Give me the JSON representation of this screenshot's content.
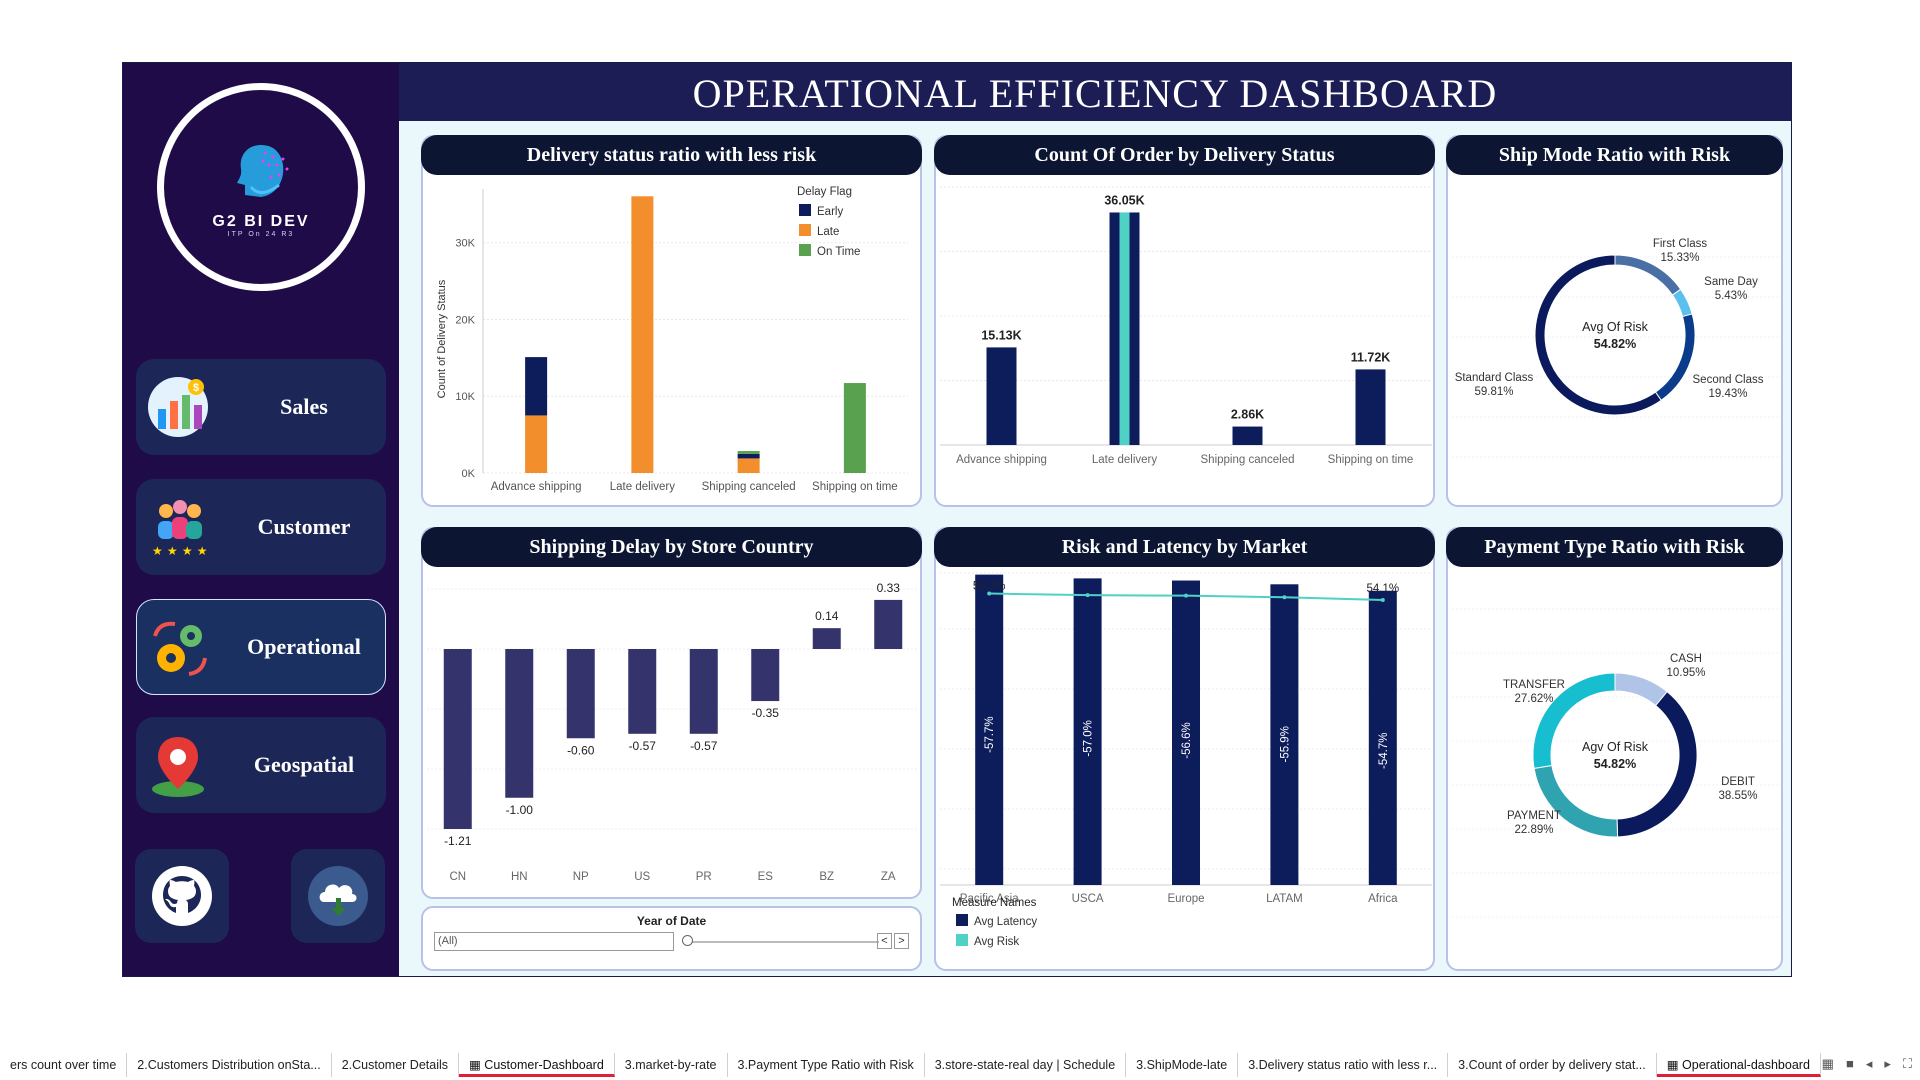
{
  "header": {
    "title": "OPERATIONAL EFFICIENCY DASHBOARD"
  },
  "logo": {
    "title": "G2 BI DEV",
    "subtitle": "ITP On 24 R3"
  },
  "nav": {
    "sales": "Sales",
    "customer": "Customer",
    "operational": "Operational",
    "geospatial": "Geospatial"
  },
  "panels": {
    "delivery_ratio": "Delivery status ratio with less risk",
    "count_order": "Count Of Order by Delivery Status",
    "ship_mode": "Ship Mode Ratio with Risk",
    "shipping_delay": "Shipping Delay by Store Country",
    "risk_latency": "Risk and Latency by Market",
    "payment_type": "Payment Type Ratio with Risk"
  },
  "filter": {
    "label": "Year of Date",
    "value": "(All)",
    "prev": "<",
    "next": ">"
  },
  "colors": {
    "early": "#0d1d5c",
    "late": "#f28e2b",
    "on_time": "#59a14f",
    "navy": "#0d1d5c",
    "teal": "#4fd1c5",
    "delay_bar": "#35336b"
  },
  "chart_data": [
    {
      "type": "bar",
      "title": "Delivery status ratio with less risk",
      "ylabel": "Count of Delivery Status",
      "categories": [
        "Advance shipping",
        "Late delivery",
        "Shipping canceled",
        "Shipping on time"
      ],
      "series": [
        {
          "name": "Early",
          "values": [
            7600,
            0,
            600,
            0
          ]
        },
        {
          "name": "Late",
          "values": [
            7500,
            36050,
            1900,
            0
          ]
        },
        {
          "name": "On Time",
          "values": [
            0,
            0,
            360,
            11720
          ]
        }
      ],
      "yticks": [
        "0K",
        "10K",
        "20K",
        "30K"
      ],
      "ylim": [
        0,
        37000
      ],
      "legend_title": "Delay Flag",
      "legend": "top-right"
    },
    {
      "type": "bar",
      "title": "Count Of Order by Delivery Status",
      "categories": [
        "Advance shipping",
        "Late delivery",
        "Shipping canceled",
        "Shipping on time"
      ],
      "values": [
        15130,
        36050,
        2860,
        11720
      ],
      "labels": [
        "15.13K",
        "36.05K",
        "2.86K",
        "11.72K"
      ],
      "ylim": [
        0,
        40000
      ]
    },
    {
      "type": "pie",
      "title": "Ship Mode Ratio with Risk",
      "center_label": "Avg Of Risk",
      "center_value": "54.82%",
      "slices": [
        {
          "name": "First Class",
          "value": 15.33,
          "label": "15.33%"
        },
        {
          "name": "Same Day",
          "value": 5.43,
          "label": "5.43%"
        },
        {
          "name": "Second Class",
          "value": 19.43,
          "label": "19.43%"
        },
        {
          "name": "Standard Class",
          "value": 59.81,
          "label": "59.81%"
        }
      ]
    },
    {
      "type": "bar",
      "title": "Shipping Delay by Store Country",
      "categories": [
        "CN",
        "HN",
        "NP",
        "US",
        "PR",
        "ES",
        "BZ",
        "ZA"
      ],
      "values": [
        -1.21,
        -1.0,
        -0.6,
        -0.57,
        -0.57,
        -0.35,
        0.14,
        0.33
      ],
      "labels": [
        "-1.21",
        "-1.00",
        "-0.60",
        "-0.57",
        "-0.57",
        "-0.35",
        "0.14",
        "0.33"
      ]
    },
    {
      "type": "bar",
      "title": "Risk and Latency by Market",
      "categories": [
        "Pacific Asia",
        "USCA",
        "Europe",
        "LATAM",
        "Africa"
      ],
      "series": [
        {
          "name": "Avg Latency",
          "values": [
            -57.7,
            -57.0,
            -56.6,
            -55.9,
            -54.7
          ],
          "labels": [
            "-57.7%",
            "-57.0%",
            "-56.6%",
            "-55.9%",
            "-54.7%"
          ]
        },
        {
          "name": "Avg Risk",
          "values": [
            55.3,
            55.0,
            54.9,
            54.6,
            54.1
          ],
          "end_labels": [
            "55.3%",
            "54.1%"
          ]
        }
      ],
      "legend_title": "Measure Names",
      "legend": "bottom-left"
    },
    {
      "type": "pie",
      "title": "Payment Type Ratio with Risk",
      "center_label": "Agv Of Risk",
      "center_value": "54.82%",
      "slices": [
        {
          "name": "CASH",
          "value": 10.95,
          "label": "10.95%"
        },
        {
          "name": "DEBIT",
          "value": 38.55,
          "label": "38.55%"
        },
        {
          "name": "PAYMENT",
          "value": 22.89,
          "label": "22.89%"
        },
        {
          "name": "TRANSFER",
          "value": 27.62,
          "label": "27.62%"
        }
      ]
    }
  ],
  "tabs": [
    "ers count over time",
    "2.Customers Distribution onSta...",
    "2.Customer Details",
    "Customer-Dashboard",
    "3.market-by-rate",
    "3.Payment Type Ratio with Risk",
    "3.store-state-real day | Schedule",
    "3.ShipMode-late",
    "3.Delivery status ratio with less r...",
    "3.Count of order by delivery stat...",
    "Operational-dashboard"
  ]
}
